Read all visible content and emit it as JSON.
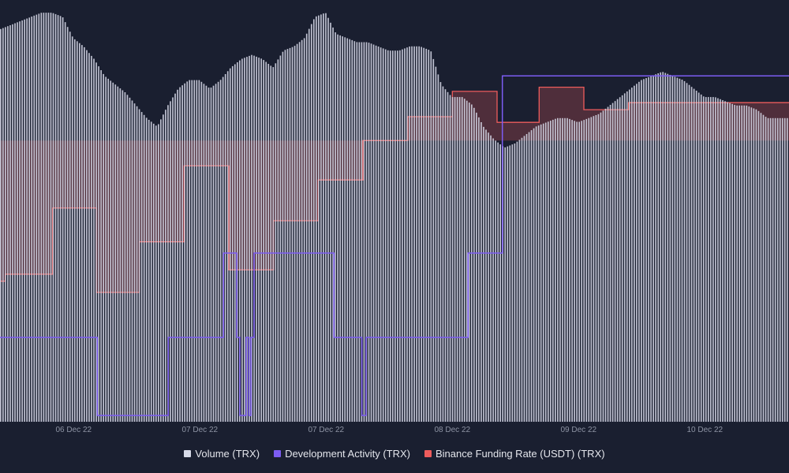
{
  "chart_data": {
    "type": "area",
    "x_tick_labels": [
      "06 Dec 22",
      "07 Dec 22",
      "07 Dec 22",
      "08 Dec 22",
      "09 Dec 22",
      "10 Dec 22"
    ],
    "x_tick_positions_hours": [
      14,
      38,
      62,
      86,
      110,
      134
    ],
    "x_range_hours": [
      0,
      150
    ],
    "grid": false,
    "legend_position": "bottom-center",
    "series": [
      {
        "name": "Volume (TRX)",
        "type": "bar",
        "color": "#d7dae8",
        "scale_range": [
          0,
          100
        ],
        "points": [
          [
            0,
            93
          ],
          [
            2,
            94
          ],
          [
            4,
            95
          ],
          [
            6,
            96
          ],
          [
            8,
            97
          ],
          [
            10,
            97
          ],
          [
            12,
            96
          ],
          [
            14,
            91
          ],
          [
            16,
            89
          ],
          [
            18,
            86
          ],
          [
            20,
            82
          ],
          [
            22,
            80
          ],
          [
            24,
            78
          ],
          [
            26,
            75
          ],
          [
            28,
            72
          ],
          [
            30,
            70
          ],
          [
            32,
            75
          ],
          [
            34,
            79
          ],
          [
            36,
            81
          ],
          [
            38,
            81
          ],
          [
            40,
            79
          ],
          [
            42,
            81
          ],
          [
            44,
            84
          ],
          [
            46,
            86
          ],
          [
            48,
            87
          ],
          [
            50,
            86
          ],
          [
            52,
            84
          ],
          [
            54,
            88
          ],
          [
            56,
            89
          ],
          [
            58,
            91
          ],
          [
            60,
            96
          ],
          [
            62,
            97
          ],
          [
            64,
            92
          ],
          [
            66,
            91
          ],
          [
            68,
            90
          ],
          [
            70,
            90
          ],
          [
            72,
            89
          ],
          [
            74,
            88
          ],
          [
            76,
            88
          ],
          [
            78,
            89
          ],
          [
            80,
            89
          ],
          [
            82,
            88
          ],
          [
            84,
            80
          ],
          [
            86,
            77
          ],
          [
            88,
            77
          ],
          [
            90,
            75
          ],
          [
            92,
            70
          ],
          [
            94,
            67
          ],
          [
            96,
            65
          ],
          [
            98,
            66
          ],
          [
            100,
            68
          ],
          [
            102,
            70
          ],
          [
            104,
            71
          ],
          [
            106,
            72
          ],
          [
            108,
            72
          ],
          [
            110,
            71
          ],
          [
            112,
            72
          ],
          [
            114,
            73
          ],
          [
            116,
            75
          ],
          [
            118,
            77
          ],
          [
            120,
            79
          ],
          [
            122,
            81
          ],
          [
            124,
            82
          ],
          [
            126,
            83
          ],
          [
            128,
            82
          ],
          [
            130,
            81
          ],
          [
            132,
            79
          ],
          [
            134,
            77
          ],
          [
            136,
            77
          ],
          [
            138,
            76
          ],
          [
            140,
            75
          ],
          [
            142,
            75
          ],
          [
            144,
            74
          ],
          [
            146,
            72
          ],
          [
            150,
            72
          ]
        ]
      },
      {
        "name": "Development Activity (TRX)",
        "type": "step",
        "color": "#7c5cf2",
        "scale_range": [
          0,
          100
        ],
        "points": [
          [
            0,
            20
          ],
          [
            18.5,
            20
          ],
          [
            18.5,
            1.5
          ],
          [
            32,
            1.5
          ],
          [
            32,
            20
          ],
          [
            42.5,
            20
          ],
          [
            42.5,
            40
          ],
          [
            45,
            40
          ],
          [
            45,
            20
          ],
          [
            45.6,
            20
          ],
          [
            45.6,
            1.5
          ],
          [
            46.8,
            1.5
          ],
          [
            46.8,
            20
          ],
          [
            47.3,
            20
          ],
          [
            47.3,
            1.5
          ],
          [
            47.7,
            1.5
          ],
          [
            47.7,
            20
          ],
          [
            48.3,
            20
          ],
          [
            48.3,
            40
          ],
          [
            63.5,
            40
          ],
          [
            63.5,
            20
          ],
          [
            68.8,
            20
          ],
          [
            68.8,
            1.5
          ],
          [
            69.6,
            1.5
          ],
          [
            69.6,
            20
          ],
          [
            89,
            20
          ],
          [
            89,
            40
          ],
          [
            95.5,
            40
          ],
          [
            95.5,
            82
          ],
          [
            150,
            82
          ]
        ]
      },
      {
        "name": "Binance Funding Rate (USDT) (TRX)",
        "type": "step",
        "color": "#ee5c5c",
        "baseline": 0,
        "scale_range": [
          -0.02,
          0.01
        ],
        "points": [
          [
            0,
            -0.01
          ],
          [
            1,
            -0.01
          ],
          [
            1,
            -0.0095
          ],
          [
            10,
            -0.0095
          ],
          [
            10,
            -0.0048
          ],
          [
            18.3,
            -0.0048
          ],
          [
            18.3,
            -0.0108
          ],
          [
            26.5,
            -0.0108
          ],
          [
            26.5,
            -0.0072
          ],
          [
            35,
            -0.0072
          ],
          [
            35,
            -0.0018
          ],
          [
            43.5,
            -0.0018
          ],
          [
            43.5,
            -0.0092
          ],
          [
            52,
            -0.0092
          ],
          [
            52,
            -0.0057
          ],
          [
            60.5,
            -0.0057
          ],
          [
            60.5,
            -0.0028
          ],
          [
            69,
            -0.0028
          ],
          [
            69,
            0.0
          ],
          [
            77.5,
            0.0
          ],
          [
            77.5,
            0.0017
          ],
          [
            86,
            0.0017
          ],
          [
            86,
            0.0035
          ],
          [
            94.5,
            0.0035
          ],
          [
            94.5,
            0.0013
          ],
          [
            102.5,
            0.0013
          ],
          [
            102.5,
            0.0038
          ],
          [
            111,
            0.0038
          ],
          [
            111,
            0.0022
          ],
          [
            119.5,
            0.0022
          ],
          [
            119.5,
            0.0027
          ],
          [
            150,
            0.0027
          ]
        ]
      }
    ]
  },
  "legend": [
    {
      "label": "Volume (TRX)",
      "color": "#d7dae8"
    },
    {
      "label": "Development Activity (TRX)",
      "color": "#7c5cf2"
    },
    {
      "label": "Binance Funding Rate (USDT) (TRX)",
      "color": "#ee5c5c"
    }
  ]
}
